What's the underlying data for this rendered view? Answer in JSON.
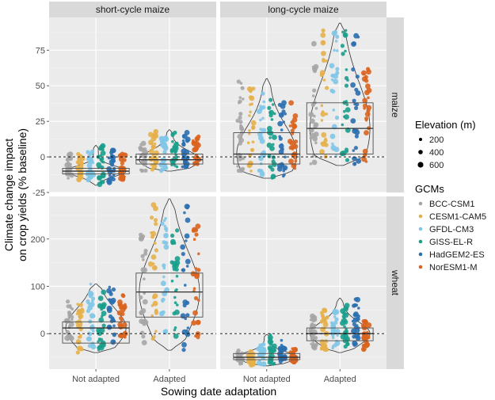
{
  "chart_data": {
    "type": "scatter",
    "xlabel": "Sowing date adaptation",
    "ylabel_lines": [
      "Climate change impact",
      "on crop yields (% baseline)"
    ],
    "categories": [
      "Not adapted",
      "Adapted"
    ],
    "facet_columns": [
      "short-cycle maize",
      "long-cycle maize"
    ],
    "facet_rows": [
      "maize",
      "wheat"
    ],
    "row_ticks": [
      [
        -25,
        0,
        25,
        50,
        75
      ],
      [
        0,
        100,
        200
      ]
    ],
    "row_ylim": [
      [
        -25,
        98
      ],
      [
        -75,
        290
      ]
    ],
    "reference_line": 0,
    "grid": true,
    "legend_position": "right",
    "elevation_legend": {
      "title": "Elevation (m)",
      "levels": [
        {
          "label": "200",
          "value": 200
        },
        {
          "label": "400",
          "value": 400
        },
        {
          "label": "600",
          "value": 600
        }
      ]
    },
    "gcm_legend": {
      "title": "GCMs",
      "items": [
        {
          "name": "BCC-CSM1",
          "color": "#a6a6a6"
        },
        {
          "name": "CESM1-CAM5",
          "color": "#e5b04b"
        },
        {
          "name": "GFDL-CM3",
          "color": "#7fc6e8"
        },
        {
          "name": "GISS-EL-R",
          "color": "#1a9e8c"
        },
        {
          "name": "HadGEM2-ES",
          "color": "#2a6fb0"
        },
        {
          "name": "NorESM1-M",
          "color": "#d9641e"
        }
      ]
    },
    "panels": [
      {
        "row": 0,
        "col": 0,
        "groups": [
          {
            "category": "Not adapted",
            "median": -10,
            "q1": -12,
            "q3": -8,
            "gcm_ranges": [
              [
                -15,
                2
              ],
              [
                -16,
                3
              ],
              [
                -18,
                4
              ],
              [
                -20,
                8
              ],
              [
                -18,
                5
              ],
              [
                -16,
                3
              ]
            ]
          },
          {
            "category": "Adapted",
            "median": -2,
            "q1": -5,
            "q3": 2,
            "gcm_ranges": [
              [
                -10,
                10
              ],
              [
                -9,
                18
              ],
              [
                -10,
                15
              ],
              [
                -8,
                19
              ],
              [
                -7,
                19
              ],
              [
                -6,
                15
              ]
            ]
          }
        ]
      },
      {
        "row": 0,
        "col": 1,
        "groups": [
          {
            "category": "Not adapted",
            "median": 2,
            "q1": -5,
            "q3": 17,
            "gcm_ranges": [
              [
                -12,
                55
              ],
              [
                -10,
                52
              ],
              [
                -13,
                48
              ],
              [
                -15,
                42
              ],
              [
                -14,
                40
              ],
              [
                -10,
                38
              ]
            ]
          },
          {
            "category": "Adapted",
            "median": 20,
            "q1": 2,
            "q3": 38,
            "gcm_ranges": [
              [
                -5,
                80
              ],
              [
                0,
                94
              ],
              [
                -3,
                88
              ],
              [
                -5,
                92
              ],
              [
                -6,
                92
              ],
              [
                -4,
                70
              ]
            ]
          }
        ]
      },
      {
        "row": 1,
        "col": 0,
        "groups": [
          {
            "category": "Not adapted",
            "median": 12,
            "q1": -20,
            "q3": 25,
            "gcm_ranges": [
              [
                -15,
                70
              ],
              [
                -40,
                75
              ],
              [
                -30,
                105
              ],
              [
                -35,
                95
              ],
              [
                -20,
                100
              ],
              [
                -10,
                85
              ]
            ]
          },
          {
            "category": "Adapted",
            "median": 88,
            "q1": 35,
            "q3": 128,
            "gcm_ranges": [
              [
                -20,
                210
              ],
              [
                -25,
                280
              ],
              [
                -15,
                250
              ],
              [
                -10,
                230
              ],
              [
                -35,
                285
              ],
              [
                -30,
                230
              ]
            ]
          }
        ]
      },
      {
        "row": 1,
        "col": 1,
        "groups": [
          {
            "category": "Not adapted",
            "median": -50,
            "q1": -55,
            "q3": -42,
            "gcm_ranges": [
              [
                -65,
                -35
              ],
              [
                -68,
                -38
              ],
              [
                -65,
                -20
              ],
              [
                -65,
                -2
              ],
              [
                -60,
                -8
              ],
              [
                -60,
                -30
              ]
            ]
          },
          {
            "category": "Adapted",
            "median": 0,
            "q1": -15,
            "q3": 12,
            "gcm_ranges": [
              [
                -30,
                40
              ],
              [
                -40,
                55
              ],
              [
                -35,
                48
              ],
              [
                -30,
                60
              ],
              [
                -25,
                75
              ],
              [
                -35,
                30
              ]
            ]
          }
        ]
      }
    ]
  }
}
